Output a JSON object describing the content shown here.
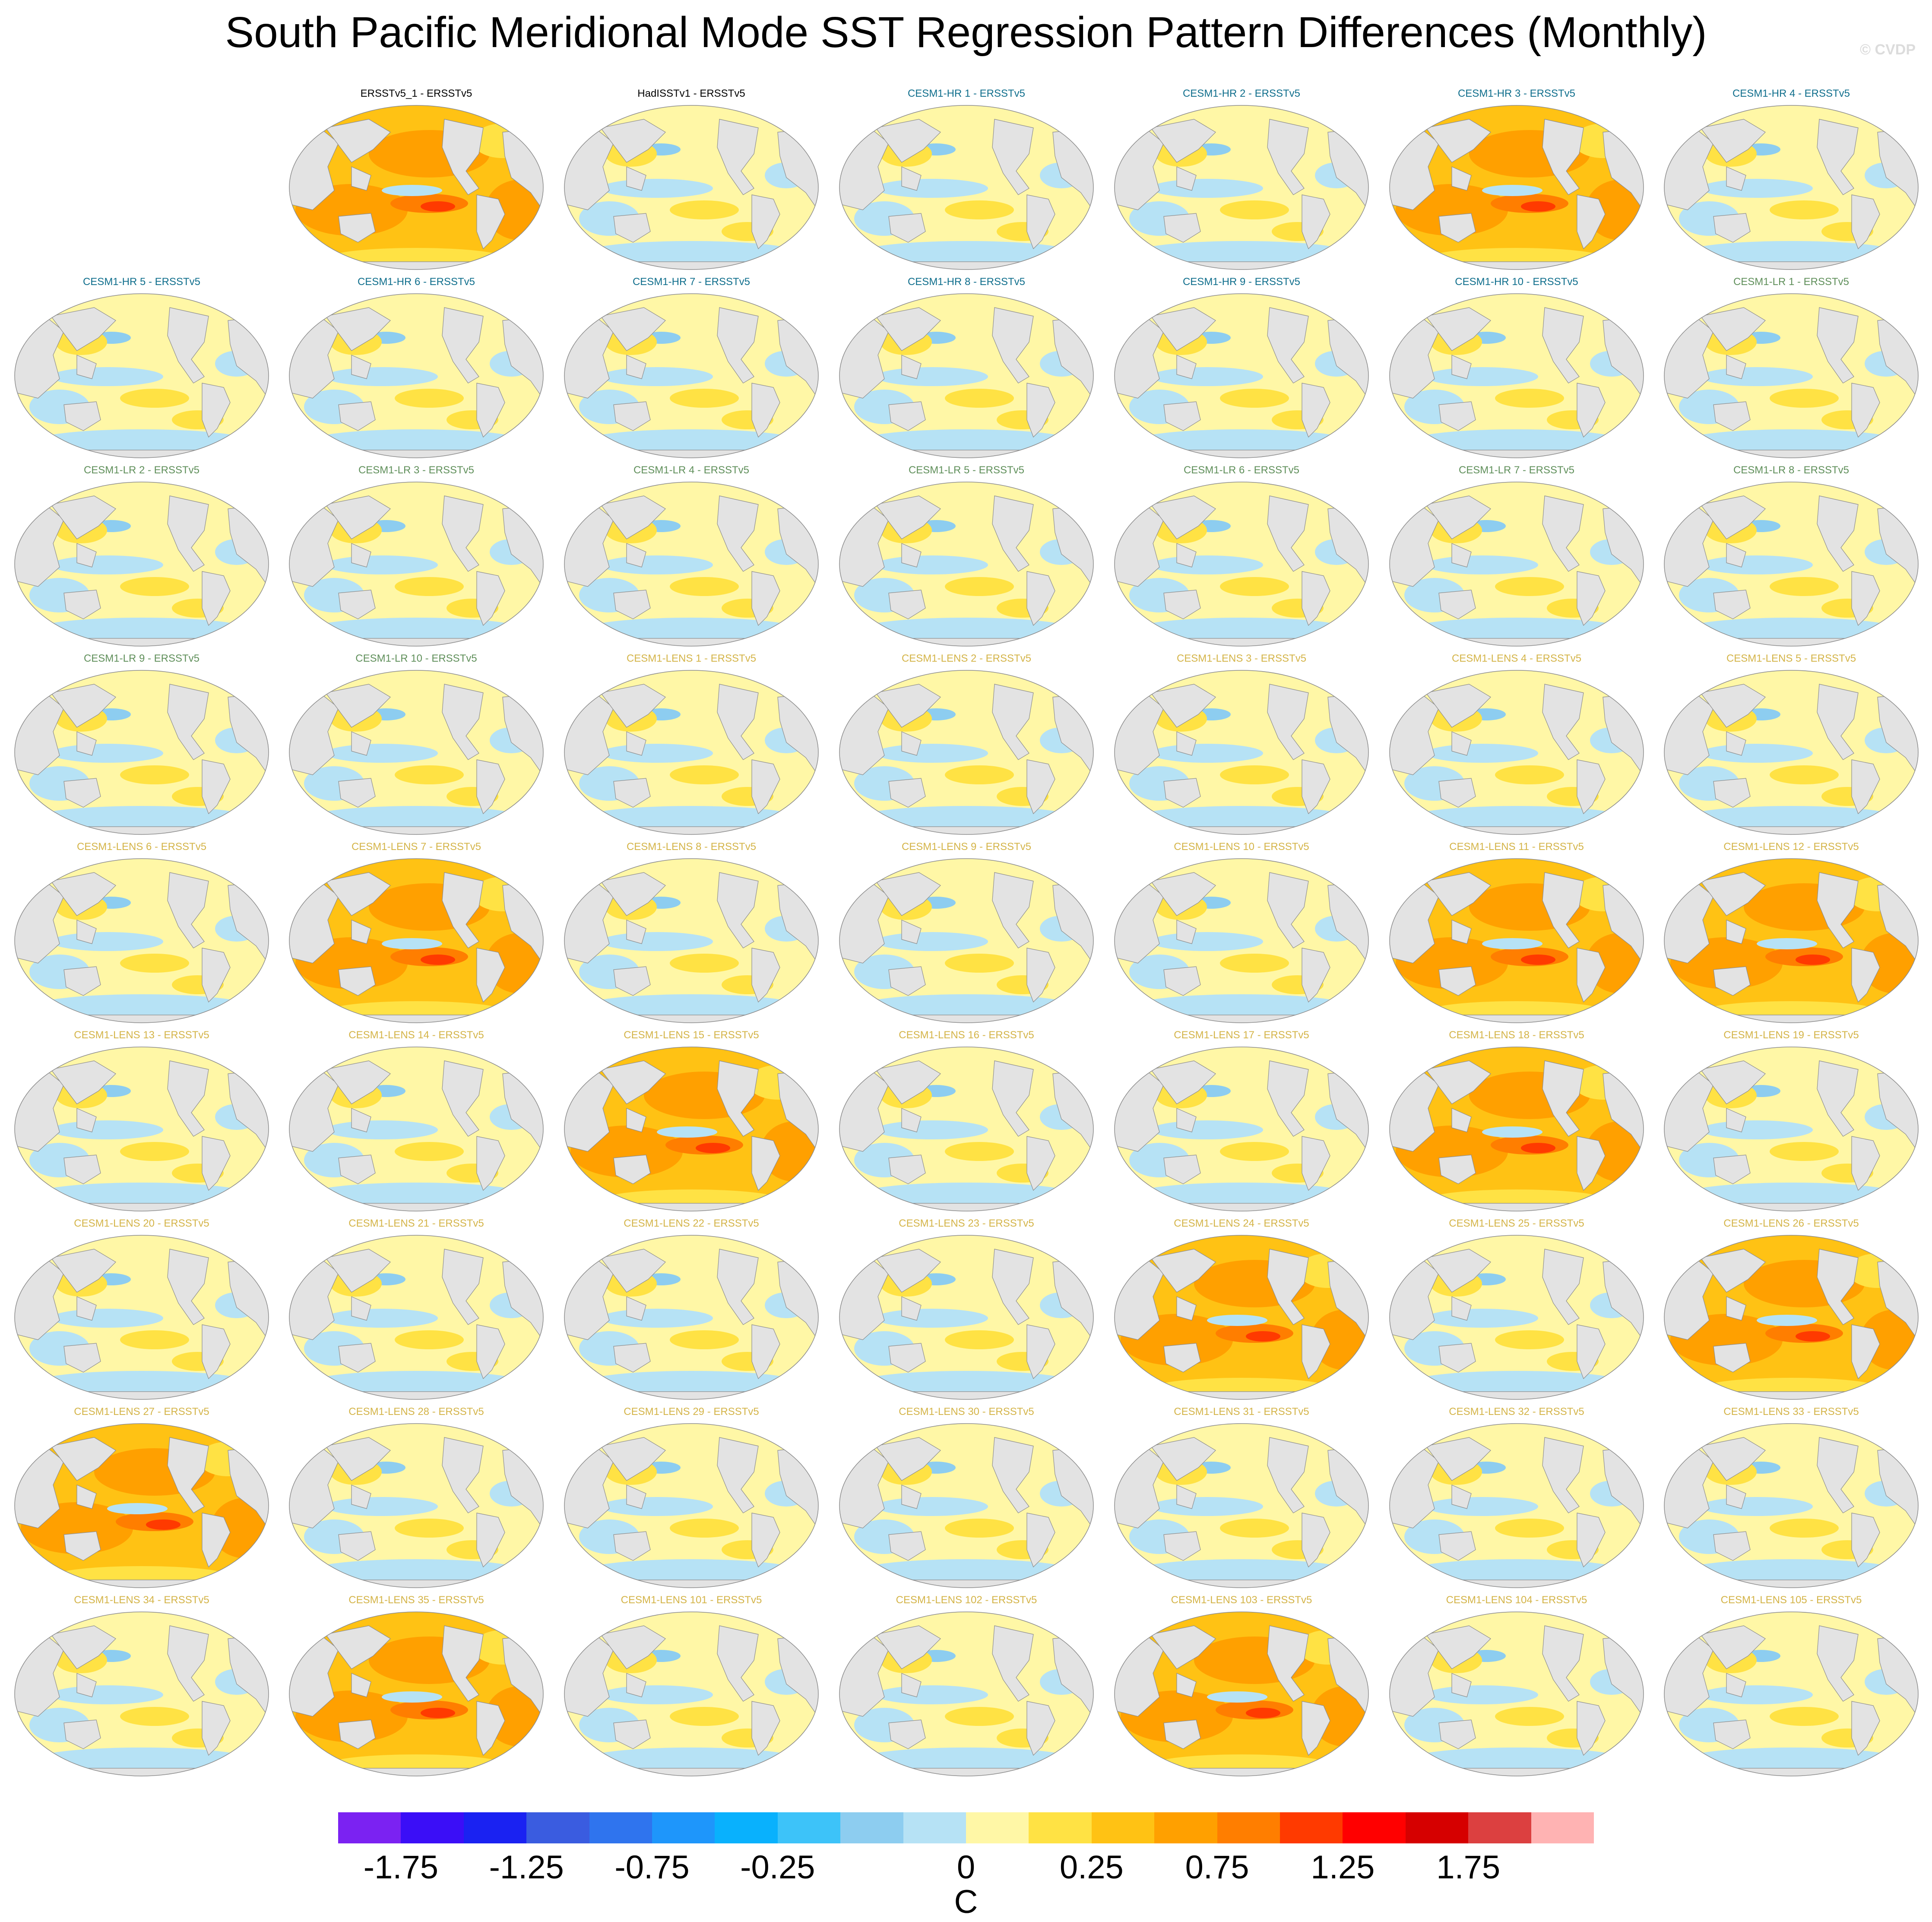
{
  "title": "South Pacific Meridional Mode SST Regression Pattern Differences (Monthly)",
  "watermark": "© CVDP",
  "units": "C",
  "group_colors": {
    "obs": "#000000",
    "hr": "#0f6e8c",
    "lr": "#5f8f5a",
    "lens": "#d4b448"
  },
  "panel_colors": {
    "land": "#e3e3e3",
    "coast": "#8c8c8c",
    "ocean_base": "#fff7a6"
  },
  "icons": {
    "map": "world-map-icon"
  },
  "panels": [
    {
      "label": "ERSSTv5_1 - ERSSTv5",
      "group": "obs",
      "row": 0,
      "col": 1,
      "warm": 1
    },
    {
      "label": "HadISSTv1 - ERSSTv5",
      "group": "obs",
      "row": 0,
      "col": 2,
      "warm": 0
    },
    {
      "label": "CESM1-HR 1 - ERSSTv5",
      "group": "hr",
      "row": 0,
      "col": 3,
      "warm": 0
    },
    {
      "label": "CESM1-HR 2 - ERSSTv5",
      "group": "hr",
      "row": 0,
      "col": 4,
      "warm": 0
    },
    {
      "label": "CESM1-HR 3 - ERSSTv5",
      "group": "hr",
      "row": 0,
      "col": 5,
      "warm": 1
    },
    {
      "label": "CESM1-HR 4 - ERSSTv5",
      "group": "hr",
      "row": 0,
      "col": 6,
      "warm": 0
    },
    {
      "label": "CESM1-HR 5 - ERSSTv5",
      "group": "hr",
      "row": 1,
      "col": 0,
      "warm": 0
    },
    {
      "label": "CESM1-HR 6 - ERSSTv5",
      "group": "hr",
      "row": 1,
      "col": 1,
      "warm": 0
    },
    {
      "label": "CESM1-HR 7 - ERSSTv5",
      "group": "hr",
      "row": 1,
      "col": 2,
      "warm": 0
    },
    {
      "label": "CESM1-HR 8 - ERSSTv5",
      "group": "hr",
      "row": 1,
      "col": 3,
      "warm": 0
    },
    {
      "label": "CESM1-HR 9 - ERSSTv5",
      "group": "hr",
      "row": 1,
      "col": 4,
      "warm": 0
    },
    {
      "label": "CESM1-HR 10 - ERSSTv5",
      "group": "hr",
      "row": 1,
      "col": 5,
      "warm": 0
    },
    {
      "label": "CESM1-LR 1 - ERSSTv5",
      "group": "lr",
      "row": 1,
      "col": 6,
      "warm": 0
    },
    {
      "label": "CESM1-LR 2 - ERSSTv5",
      "group": "lr",
      "row": 2,
      "col": 0,
      "warm": 0
    },
    {
      "label": "CESM1-LR 3 - ERSSTv5",
      "group": "lr",
      "row": 2,
      "col": 1,
      "warm": 0
    },
    {
      "label": "CESM1-LR 4 - ERSSTv5",
      "group": "lr",
      "row": 2,
      "col": 2,
      "warm": 0
    },
    {
      "label": "CESM1-LR 5 - ERSSTv5",
      "group": "lr",
      "row": 2,
      "col": 3,
      "warm": 0
    },
    {
      "label": "CESM1-LR 6 - ERSSTv5",
      "group": "lr",
      "row": 2,
      "col": 4,
      "warm": 0
    },
    {
      "label": "CESM1-LR 7 - ERSSTv5",
      "group": "lr",
      "row": 2,
      "col": 5,
      "warm": 0
    },
    {
      "label": "CESM1-LR 8 - ERSSTv5",
      "group": "lr",
      "row": 2,
      "col": 6,
      "warm": 0
    },
    {
      "label": "CESM1-LR 9 - ERSSTv5",
      "group": "lr",
      "row": 3,
      "col": 0,
      "warm": 0
    },
    {
      "label": "CESM1-LR 10 - ERSSTv5",
      "group": "lr",
      "row": 3,
      "col": 1,
      "warm": 0
    },
    {
      "label": "CESM1-LENS 1 - ERSSTv5",
      "group": "lens",
      "row": 3,
      "col": 2,
      "warm": 0
    },
    {
      "label": "CESM1-LENS 2 - ERSSTv5",
      "group": "lens",
      "row": 3,
      "col": 3,
      "warm": 0
    },
    {
      "label": "CESM1-LENS 3 - ERSSTv5",
      "group": "lens",
      "row": 3,
      "col": 4,
      "warm": 0
    },
    {
      "label": "CESM1-LENS 4 - ERSSTv5",
      "group": "lens",
      "row": 3,
      "col": 5,
      "warm": 0
    },
    {
      "label": "CESM1-LENS 5 - ERSSTv5",
      "group": "lens",
      "row": 3,
      "col": 6,
      "warm": 0
    },
    {
      "label": "CESM1-LENS 6 - ERSSTv5",
      "group": "lens",
      "row": 4,
      "col": 0,
      "warm": 0
    },
    {
      "label": "CESM1-LENS 7 - ERSSTv5",
      "group": "lens",
      "row": 4,
      "col": 1,
      "warm": 1
    },
    {
      "label": "CESM1-LENS 8 - ERSSTv5",
      "group": "lens",
      "row": 4,
      "col": 2,
      "warm": 0
    },
    {
      "label": "CESM1-LENS 9 - ERSSTv5",
      "group": "lens",
      "row": 4,
      "col": 3,
      "warm": 0
    },
    {
      "label": "CESM1-LENS 10 - ERSSTv5",
      "group": "lens",
      "row": 4,
      "col": 4,
      "warm": 0
    },
    {
      "label": "CESM1-LENS 11 - ERSSTv5",
      "group": "lens",
      "row": 4,
      "col": 5,
      "warm": 1
    },
    {
      "label": "CESM1-LENS 12 - ERSSTv5",
      "group": "lens",
      "row": 4,
      "col": 6,
      "warm": 1
    },
    {
      "label": "CESM1-LENS 13 - ERSSTv5",
      "group": "lens",
      "row": 5,
      "col": 0,
      "warm": 0
    },
    {
      "label": "CESM1-LENS 14 - ERSSTv5",
      "group": "lens",
      "row": 5,
      "col": 1,
      "warm": 0
    },
    {
      "label": "CESM1-LENS 15 - ERSSTv5",
      "group": "lens",
      "row": 5,
      "col": 2,
      "warm": 1
    },
    {
      "label": "CESM1-LENS 16 - ERSSTv5",
      "group": "lens",
      "row": 5,
      "col": 3,
      "warm": 0
    },
    {
      "label": "CESM1-LENS 17 - ERSSTv5",
      "group": "lens",
      "row": 5,
      "col": 4,
      "warm": 0
    },
    {
      "label": "CESM1-LENS 18 - ERSSTv5",
      "group": "lens",
      "row": 5,
      "col": 5,
      "warm": 1
    },
    {
      "label": "CESM1-LENS 19 - ERSSTv5",
      "group": "lens",
      "row": 5,
      "col": 6,
      "warm": 0
    },
    {
      "label": "CESM1-LENS 20 - ERSSTv5",
      "group": "lens",
      "row": 6,
      "col": 0,
      "warm": 0
    },
    {
      "label": "CESM1-LENS 21 - ERSSTv5",
      "group": "lens",
      "row": 6,
      "col": 1,
      "warm": 0
    },
    {
      "label": "CESM1-LENS 22 - ERSSTv5",
      "group": "lens",
      "row": 6,
      "col": 2,
      "warm": 0
    },
    {
      "label": "CESM1-LENS 23 - ERSSTv5",
      "group": "lens",
      "row": 6,
      "col": 3,
      "warm": 0
    },
    {
      "label": "CESM1-LENS 24 - ERSSTv5",
      "group": "lens",
      "row": 6,
      "col": 4,
      "warm": 1
    },
    {
      "label": "CESM1-LENS 25 - ERSSTv5",
      "group": "lens",
      "row": 6,
      "col": 5,
      "warm": 0
    },
    {
      "label": "CESM1-LENS 26 - ERSSTv5",
      "group": "lens",
      "row": 6,
      "col": 6,
      "warm": 1
    },
    {
      "label": "CESM1-LENS 27 - ERSSTv5",
      "group": "lens",
      "row": 7,
      "col": 0,
      "warm": 1
    },
    {
      "label": "CESM1-LENS 28 - ERSSTv5",
      "group": "lens",
      "row": 7,
      "col": 1,
      "warm": 0
    },
    {
      "label": "CESM1-LENS 29 - ERSSTv5",
      "group": "lens",
      "row": 7,
      "col": 2,
      "warm": 0
    },
    {
      "label": "CESM1-LENS 30 - ERSSTv5",
      "group": "lens",
      "row": 7,
      "col": 3,
      "warm": 0
    },
    {
      "label": "CESM1-LENS 31 - ERSSTv5",
      "group": "lens",
      "row": 7,
      "col": 4,
      "warm": 0
    },
    {
      "label": "CESM1-LENS 32 - ERSSTv5",
      "group": "lens",
      "row": 7,
      "col": 5,
      "warm": 0
    },
    {
      "label": "CESM1-LENS 33 - ERSSTv5",
      "group": "lens",
      "row": 7,
      "col": 6,
      "warm": 0
    },
    {
      "label": "CESM1-LENS 34 - ERSSTv5",
      "group": "lens",
      "row": 8,
      "col": 0,
      "warm": 0
    },
    {
      "label": "CESM1-LENS 35 - ERSSTv5",
      "group": "lens",
      "row": 8,
      "col": 1,
      "warm": 1
    },
    {
      "label": "CESM1-LENS 101 - ERSSTv5",
      "group": "lens",
      "row": 8,
      "col": 2,
      "warm": 0
    },
    {
      "label": "CESM1-LENS 102 - ERSSTv5",
      "group": "lens",
      "row": 8,
      "col": 3,
      "warm": 0
    },
    {
      "label": "CESM1-LENS 103 - ERSSTv5",
      "group": "lens",
      "row": 8,
      "col": 4,
      "warm": 1
    },
    {
      "label": "CESM1-LENS 104 - ERSSTv5",
      "group": "lens",
      "row": 8,
      "col": 5,
      "warm": 0
    },
    {
      "label": "CESM1-LENS 105 - ERSSTv5",
      "group": "lens",
      "row": 8,
      "col": 6,
      "warm": 0
    }
  ],
  "colorbar": {
    "colors": [
      "#7b22f2",
      "#3b0ef7",
      "#1a22f2",
      "#3a5ce0",
      "#2f74ee",
      "#1e96fb",
      "#09b1fd",
      "#3dc3f9",
      "#8dcdf0",
      "#b6e2f5",
      "#fff7a6",
      "#ffe244",
      "#ffc214",
      "#ffa000",
      "#ff7e00",
      "#ff3a00",
      "#ff0000",
      "#d60000",
      "#dc4040",
      "#ffb3b3"
    ],
    "labels": [
      "-1.75",
      "-1.25",
      "-0.75",
      "-0.25",
      "0",
      "0.25",
      "0.75",
      "1.25",
      "1.75"
    ],
    "label_boundaries": [
      1,
      3,
      5,
      7,
      10,
      12,
      14,
      16,
      18
    ]
  }
}
